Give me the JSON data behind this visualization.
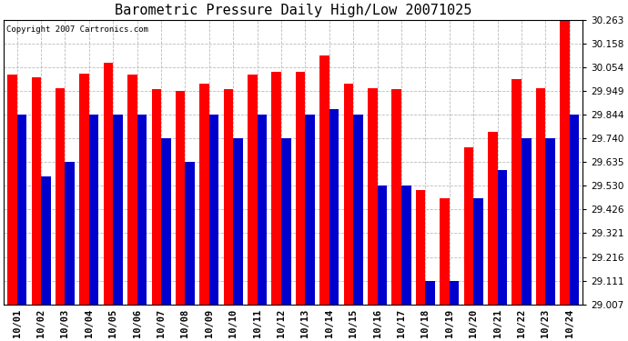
{
  "title": "Barometric Pressure Daily High/Low 20071025",
  "copyright": "Copyright 2007 Cartronics.com",
  "categories": [
    "10/01",
    "10/02",
    "10/03",
    "10/04",
    "10/05",
    "10/06",
    "10/07",
    "10/08",
    "10/09",
    "10/10",
    "10/11",
    "10/12",
    "10/13",
    "10/14",
    "10/15",
    "10/16",
    "10/17",
    "10/18",
    "10/19",
    "10/20",
    "10/21",
    "10/22",
    "10/23",
    "10/24"
  ],
  "highs": [
    30.021,
    30.008,
    29.96,
    30.025,
    30.075,
    30.021,
    29.957,
    29.949,
    29.98,
    29.957,
    30.021,
    30.032,
    30.032,
    30.105,
    29.98,
    29.96,
    29.957,
    29.51,
    29.474,
    29.7,
    29.77,
    30.0,
    29.96,
    30.263
  ],
  "lows": [
    29.844,
    29.57,
    29.635,
    29.844,
    29.844,
    29.844,
    29.74,
    29.635,
    29.844,
    29.74,
    29.844,
    29.74,
    29.844,
    29.87,
    29.844,
    29.53,
    29.53,
    29.111,
    29.111,
    29.474,
    29.6,
    29.74,
    29.74,
    29.844
  ],
  "ylim_min": 29.007,
  "ylim_max": 30.263,
  "yticks": [
    29.007,
    29.111,
    29.216,
    29.321,
    29.426,
    29.53,
    29.635,
    29.74,
    29.844,
    29.949,
    30.054,
    30.158,
    30.263
  ],
  "bar_color_high": "#FF0000",
  "bar_color_low": "#0000CC",
  "bg_color": "#FFFFFF",
  "plot_bg_color": "#FFFFFF",
  "grid_color": "#AAAAAA",
  "title_fontsize": 11,
  "tick_fontsize": 7.5,
  "bar_width": 0.4
}
